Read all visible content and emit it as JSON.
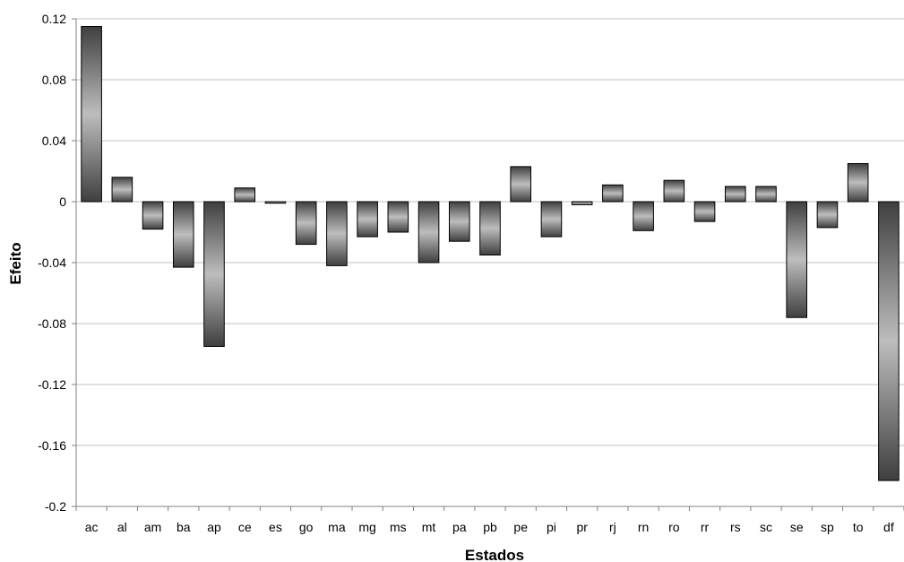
{
  "chart_data": {
    "type": "bar",
    "xlabel": "Estados",
    "ylabel": "Efeito",
    "ylim": [
      -0.2,
      0.12
    ],
    "yticks": [
      0.12,
      0.08,
      0.04,
      0,
      -0.04,
      -0.08,
      -0.12,
      -0.16,
      -0.2
    ],
    "ytick_labels": [
      "0.12",
      "0.08",
      "0.04",
      "0",
      "-0.04",
      "-0.08",
      "-0.12",
      "-0.16",
      "-0.2"
    ],
    "grid": true,
    "categories": [
      "ac",
      "al",
      "am",
      "ba",
      "ap",
      "ce",
      "es",
      "go",
      "ma",
      "mg",
      "ms",
      "mt",
      "pa",
      "pb",
      "pe",
      "pi",
      "pr",
      "rj",
      "rn",
      "ro",
      "rr",
      "rs",
      "sc",
      "se",
      "sp",
      "to",
      "df"
    ],
    "values": [
      0.115,
      0.016,
      -0.018,
      -0.043,
      -0.095,
      0.009,
      -0.001,
      -0.028,
      -0.042,
      -0.023,
      -0.02,
      -0.04,
      -0.026,
      -0.035,
      0.023,
      -0.023,
      -0.002,
      0.011,
      -0.019,
      0.014,
      -0.013,
      0.01,
      0.01,
      -0.076,
      -0.017,
      0.025,
      -0.183
    ]
  },
  "colors": {
    "bar_dark": "#3f3f3f",
    "bar_light": "#bdbdbd",
    "grid": "#c0c0c0",
    "axis": "#808080"
  }
}
